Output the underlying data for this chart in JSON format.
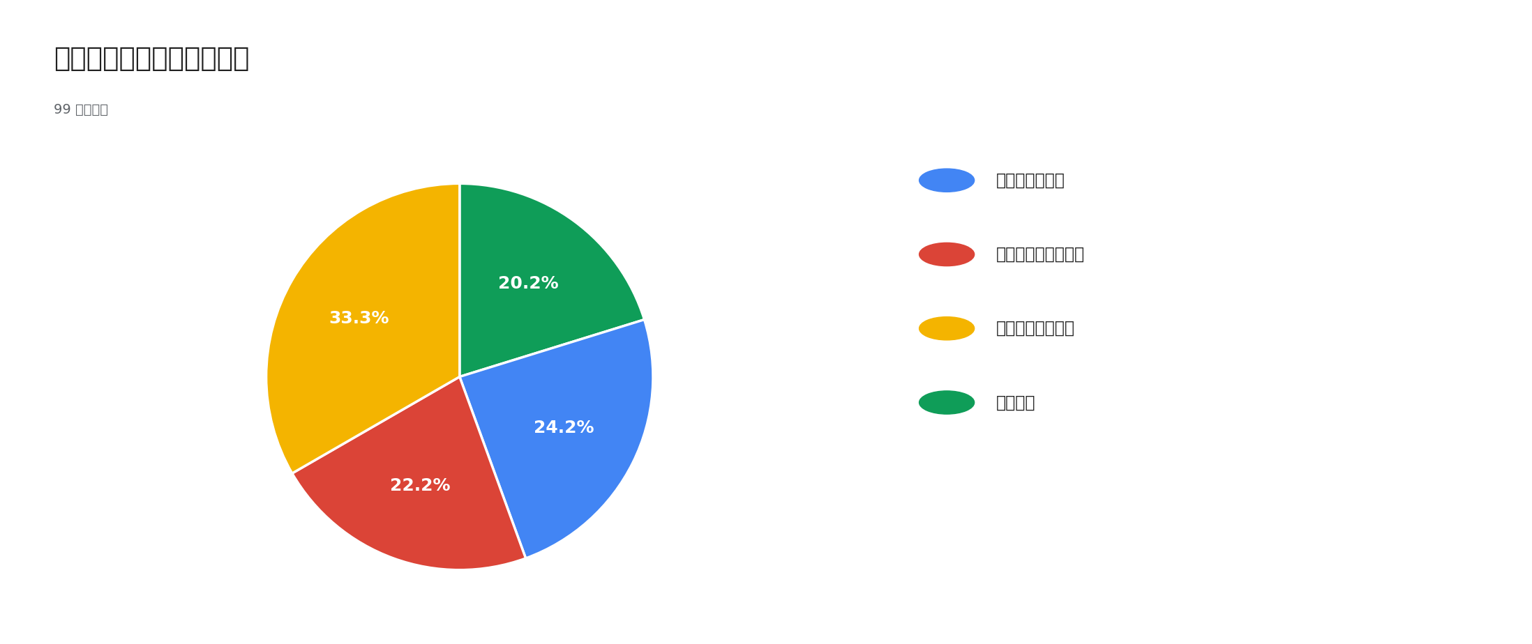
{
  "title": "コースを選択してください",
  "subtitle": "99 件の回答",
  "labels": [
    "エネルギー機械",
    "プロダクトデザイン",
    "エレクトロニクス",
    "知能情報"
  ],
  "values": [
    24.2,
    22.2,
    33.3,
    20.2
  ],
  "colors": [
    "#4285F4",
    "#DB4437",
    "#F4B400",
    "#0F9D58"
  ],
  "pct_labels": [
    "24.2%",
    "22.2%",
    "33.3%",
    "20.2%"
  ],
  "background_color": "#ffffff",
  "title_fontsize": 28,
  "subtitle_fontsize": 14,
  "legend_fontsize": 17,
  "pct_fontsize": 18
}
